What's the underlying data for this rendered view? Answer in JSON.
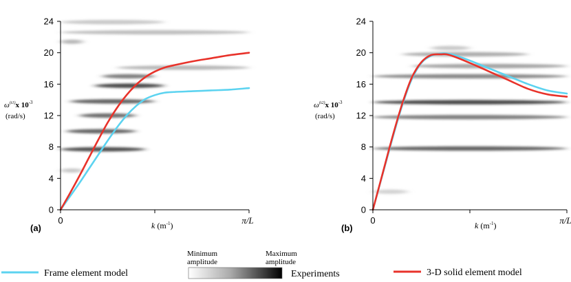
{
  "chart_data": [
    {
      "id": "a",
      "type": "line",
      "panel_label": "(a)",
      "ylabel_lines": [
        "ω(t1) x 10⁻³",
        "(rad/s)"
      ],
      "ylabel_symbol": "ω",
      "ylabel_super": "(t1)",
      "ylabel_mult": "x 10",
      "ylabel_exp": "-3",
      "ylabel_units": "(rad/s)",
      "xlabel_symbol": "k",
      "xlabel_units": "(m",
      "xlabel_exp": "-1",
      "xlabel_close": ")",
      "x_tick_labels": [
        "0",
        "π/L"
      ],
      "ylim": [
        0,
        24
      ],
      "y_ticks": [
        0,
        4,
        8,
        12,
        16,
        20,
        24
      ],
      "y_tick_labels": [
        "0",
        "4",
        "8",
        "12",
        "16",
        "20",
        "24"
      ],
      "x_range": [
        0,
        1
      ],
      "series": [
        {
          "name": "Frame element model",
          "color": "#5cd3f0",
          "x": [
            0,
            0.05,
            0.1,
            0.15,
            0.2,
            0.25,
            0.3,
            0.35,
            0.4,
            0.45,
            0.5,
            0.55,
            0.6,
            0.7,
            0.8,
            0.9,
            1.0
          ],
          "y": [
            0,
            1.7,
            3.4,
            5.2,
            7.0,
            8.8,
            10.5,
            12.0,
            13.2,
            14.1,
            14.6,
            14.9,
            15.0,
            15.1,
            15.2,
            15.3,
            15.5
          ]
        },
        {
          "name": "3-D solid element model",
          "color": "#e8322a",
          "x": [
            0,
            0.05,
            0.1,
            0.15,
            0.2,
            0.25,
            0.3,
            0.35,
            0.4,
            0.45,
            0.5,
            0.55,
            0.6,
            0.7,
            0.8,
            0.9,
            1.0
          ],
          "y": [
            0,
            2.1,
            4.3,
            6.6,
            8.9,
            11.1,
            13.0,
            14.6,
            15.9,
            16.9,
            17.6,
            18.1,
            18.4,
            18.9,
            19.3,
            19.7,
            20.0
          ]
        }
      ],
      "experiment_bands": [
        {
          "y": 23.9,
          "x0": 0.0,
          "x1": 0.55,
          "intensity": 0.2
        },
        {
          "y": 22.6,
          "x0": 0.0,
          "x1": 1.0,
          "intensity": 0.25
        },
        {
          "y": 21.4,
          "x0": 0.0,
          "x1": 0.12,
          "intensity": 0.3
        },
        {
          "y": 18.1,
          "x0": 0.3,
          "x1": 1.0,
          "intensity": 0.3
        },
        {
          "y": 17.0,
          "x0": 0.22,
          "x1": 0.5,
          "intensity": 0.6
        },
        {
          "y": 15.8,
          "x0": 0.18,
          "x1": 0.55,
          "intensity": 0.9
        },
        {
          "y": 13.8,
          "x0": 0.05,
          "x1": 0.5,
          "intensity": 0.75
        },
        {
          "y": 12.0,
          "x0": 0.1,
          "x1": 0.4,
          "intensity": 0.7
        },
        {
          "y": 10.0,
          "x0": 0.03,
          "x1": 0.4,
          "intensity": 0.75
        },
        {
          "y": 7.7,
          "x0": 0.0,
          "x1": 0.45,
          "intensity": 0.85
        },
        {
          "y": 5.0,
          "x0": 0.0,
          "x1": 0.12,
          "intensity": 0.2
        }
      ]
    },
    {
      "id": "b",
      "type": "line",
      "panel_label": "(b)",
      "ylabel_symbol": "ω",
      "ylabel_super": "(t2)",
      "ylabel_mult": "x 10",
      "ylabel_exp": "-3",
      "ylabel_units": "(rad/s)",
      "xlabel_symbol": "k",
      "xlabel_units": "(m",
      "xlabel_exp": "-1",
      "xlabel_close": ")",
      "x_tick_labels": [
        "0",
        "π/L"
      ],
      "ylim": [
        0,
        24
      ],
      "y_ticks": [
        0,
        4,
        8,
        12,
        16,
        20,
        24
      ],
      "y_tick_labels": [
        "0",
        "4",
        "8",
        "12",
        "16",
        "20",
        "24"
      ],
      "x_range": [
        0,
        1
      ],
      "series": [
        {
          "name": "Frame element model",
          "color": "#5cd3f0",
          "x": [
            0,
            0.05,
            0.1,
            0.15,
            0.2,
            0.25,
            0.3,
            0.35,
            0.38,
            0.42,
            0.5,
            0.6,
            0.7,
            0.8,
            0.9,
            1.0
          ],
          "y": [
            0,
            4.5,
            9.0,
            13.2,
            16.6,
            18.7,
            19.6,
            19.9,
            19.9,
            19.7,
            19.0,
            18.0,
            17.0,
            16.0,
            15.2,
            14.8
          ]
        },
        {
          "name": "3-D solid element model",
          "color": "#e8322a",
          "x": [
            0,
            0.05,
            0.1,
            0.15,
            0.2,
            0.25,
            0.3,
            0.35,
            0.38,
            0.42,
            0.5,
            0.6,
            0.7,
            0.8,
            0.9,
            1.0
          ],
          "y": [
            0,
            4.6,
            9.2,
            13.4,
            16.8,
            18.8,
            19.7,
            19.8,
            19.8,
            19.5,
            18.7,
            17.6,
            16.5,
            15.4,
            14.7,
            14.4
          ]
        }
      ],
      "experiment_bands": [
        {
          "y": 20.6,
          "x0": 0.3,
          "x1": 0.5,
          "intensity": 0.2
        },
        {
          "y": 19.8,
          "x0": 0.15,
          "x1": 0.8,
          "intensity": 0.35
        },
        {
          "y": 18.3,
          "x0": 0.2,
          "x1": 1.0,
          "intensity": 0.4
        },
        {
          "y": 17.0,
          "x0": 0.0,
          "x1": 1.0,
          "intensity": 0.55
        },
        {
          "y": 13.7,
          "x0": 0.0,
          "x1": 1.0,
          "intensity": 0.9
        },
        {
          "y": 11.8,
          "x0": 0.0,
          "x1": 1.0,
          "intensity": 0.6
        },
        {
          "y": 7.8,
          "x0": 0.0,
          "x1": 1.0,
          "intensity": 0.75
        },
        {
          "y": 2.3,
          "x0": 0.0,
          "x1": 0.18,
          "intensity": 0.15
        }
      ]
    }
  ],
  "legend": {
    "frame_label": "Frame element model",
    "frame_color": "#5cd3f0",
    "solid_label": "3-D solid element model",
    "solid_color": "#e8322a",
    "scale_min_line1": "Minimum",
    "scale_min_line2": "amplitude",
    "scale_max_line1": "Maximum",
    "scale_max_line2": "amplitude",
    "experiments_label": "Experiments"
  }
}
